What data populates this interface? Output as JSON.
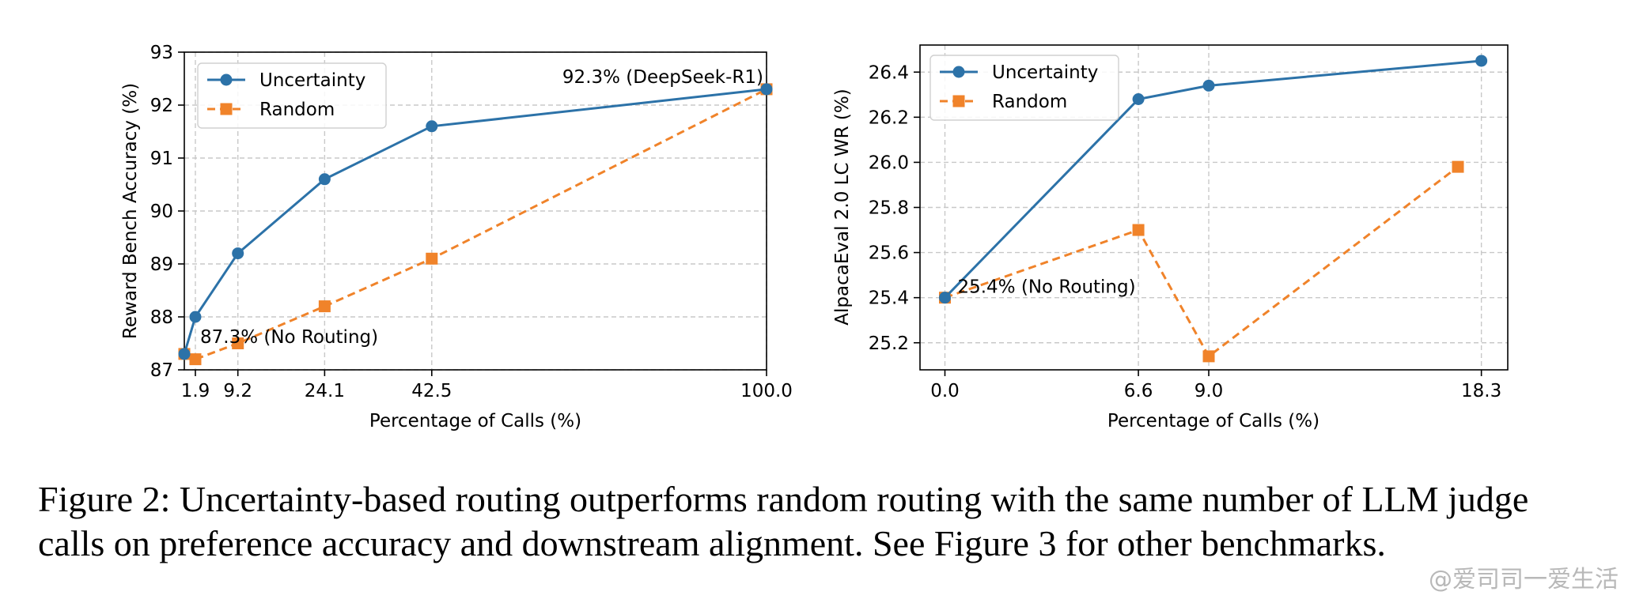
{
  "colors": {
    "uncertainty": "#2c72a8",
    "random": "#f0832a",
    "grid": "#c8c8c8"
  },
  "chart_data": [
    {
      "type": "line",
      "x_categorical": false,
      "xticks": [
        1.9,
        9.2,
        24.1,
        42.5,
        100.0
      ],
      "xtick_labels": [
        "1.9",
        "9.2",
        "24.1",
        "42.5",
        "100.0"
      ],
      "xlim": [
        0,
        100
      ],
      "yticks": [
        87,
        88,
        89,
        90,
        91,
        92,
        93
      ],
      "ytick_labels": [
        "87",
        "88",
        "89",
        "90",
        "91",
        "92",
        "93"
      ],
      "ylim": [
        87,
        93
      ],
      "xlabel": "Percentage of Calls (%)",
      "ylabel": "Reward Bench Accuracy (%)",
      "legend": "top-left",
      "grid": true,
      "series": [
        {
          "name": "Uncertainty",
          "style": "solid",
          "marker": "circle",
          "x": [
            0,
            1.9,
            9.2,
            24.1,
            42.5,
            100.0
          ],
          "y": [
            87.3,
            88.0,
            89.2,
            90.6,
            91.6,
            92.3
          ]
        },
        {
          "name": "Random",
          "style": "dashed",
          "marker": "square",
          "x": [
            0,
            1.9,
            9.2,
            24.1,
            42.5,
            100.0
          ],
          "y": [
            87.3,
            87.2,
            87.5,
            88.2,
            89.1,
            92.3
          ]
        }
      ],
      "annotations": [
        {
          "text": "92.3% (DeepSeek-R1)",
          "x": 100.0,
          "y": 92.3,
          "anchor": "end"
        },
        {
          "text": "87.3% (No Routing)",
          "x": 0,
          "y": 87.3,
          "anchor": "start"
        }
      ]
    },
    {
      "type": "line",
      "x_categorical": false,
      "xticks": [
        0.0,
        6.6,
        9.0,
        18.3
      ],
      "xtick_labels": [
        "0.0",
        "6.6",
        "9.0",
        "18.3"
      ],
      "xlim": [
        -0.85,
        19.2
      ],
      "yticks": [
        25.2,
        25.4,
        25.6,
        25.8,
        26.0,
        26.2,
        26.4
      ],
      "ytick_labels": [
        "25.2",
        "25.4",
        "25.6",
        "25.8",
        "26.0",
        "26.2",
        "26.4"
      ],
      "ylim": [
        25.08,
        26.52
      ],
      "xlabel": "Percentage of Calls (%)",
      "ylabel": "AlpacaEval 2.0 LC WR (%)",
      "legend": "top-left",
      "grid": true,
      "series": [
        {
          "name": "Uncertainty",
          "style": "solid",
          "marker": "circle",
          "x": [
            0.0,
            6.6,
            9.0,
            18.3
          ],
          "y": [
            25.4,
            26.28,
            26.34,
            26.45
          ]
        },
        {
          "name": "Random",
          "style": "dashed",
          "marker": "square",
          "x": [
            0.0,
            6.6,
            9.0,
            17.5
          ],
          "y": [
            25.4,
            25.7,
            25.14,
            25.98
          ]
        }
      ],
      "annotations": [
        {
          "text": "25.4% (No Routing)",
          "x": 0.0,
          "y": 25.4,
          "anchor": "start"
        }
      ]
    }
  ],
  "caption": "Figure 2: Uncertainty-based routing outperforms random routing with the same number of LLM judge calls on preference accuracy and downstream alignment. See Figure 3 for other benchmarks.",
  "watermark": "@爱司司一爱生活"
}
